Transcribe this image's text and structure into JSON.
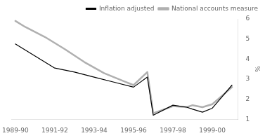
{
  "chart_data": {
    "type": "line",
    "series": [
      {
        "name": "Inflation adjusted",
        "color": "#000000",
        "x": [
          0,
          2,
          3,
          4,
          5,
          6,
          6.7,
          7,
          8,
          8.7,
          9,
          9.5,
          10,
          11
        ],
        "values": [
          4.75,
          3.55,
          3.35,
          3.1,
          2.85,
          2.6,
          3.1,
          1.2,
          1.7,
          1.6,
          1.5,
          1.35,
          1.55,
          2.7
        ]
      },
      {
        "name": "National accounts measure",
        "color": "#b0b0b0",
        "x": [
          0,
          0.5,
          1.5,
          2.5,
          3.5,
          4.5,
          5.5,
          6,
          6.7,
          7,
          8,
          8.7,
          9,
          9.5,
          10,
          11
        ],
        "values": [
          5.9,
          5.6,
          5.1,
          4.5,
          3.85,
          3.3,
          2.9,
          2.7,
          3.35,
          1.3,
          1.65,
          1.6,
          1.7,
          1.6,
          1.75,
          2.6
        ]
      }
    ],
    "xlim": [
      -0.2,
      11.3
    ],
    "xticks": [
      {
        "value": 0,
        "label": "1989-90"
      },
      {
        "value": 2,
        "label": "1991-92"
      },
      {
        "value": 4,
        "label": "1993-94"
      },
      {
        "value": 6,
        "label": "1995-96"
      },
      {
        "value": 8,
        "label": "1997-98"
      },
      {
        "value": 10,
        "label": "1999-00"
      }
    ],
    "ylim": [
      1,
      6
    ],
    "yticks": [
      1,
      2,
      3,
      4,
      5,
      6
    ],
    "ylabel": "%",
    "grid": false,
    "legend": "upper right"
  }
}
